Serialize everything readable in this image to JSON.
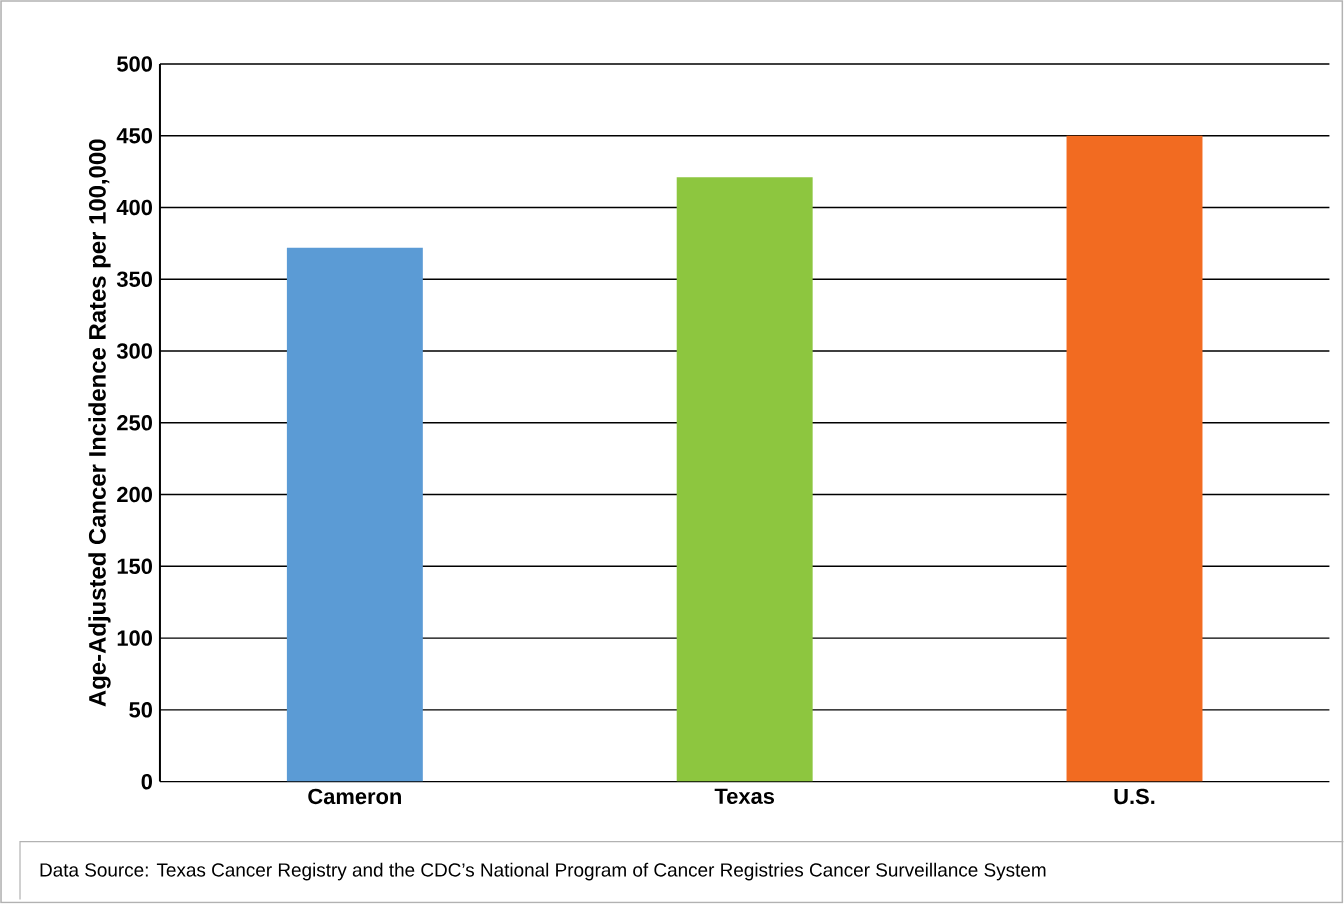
{
  "chart_data": {
    "type": "bar",
    "ylabel": "Age-Adjusted Cancer Incidence Rates per 100,000",
    "categories": [
      "Cameron",
      "Texas",
      "U.S."
    ],
    "values": [
      372,
      421,
      450
    ],
    "colors": [
      "#5b9bd5",
      "#8dc63f",
      "#f26b21"
    ],
    "ylim": [
      0,
      500
    ],
    "yticks": [
      0,
      50,
      100,
      150,
      200,
      250,
      300,
      350,
      400,
      450,
      500
    ],
    "grid": "y",
    "annotations": [
      "Data Source: Texas Cancer Registry and the CDC’s National Program of Cancer Registries Cancer Surveillance System"
    ]
  }
}
